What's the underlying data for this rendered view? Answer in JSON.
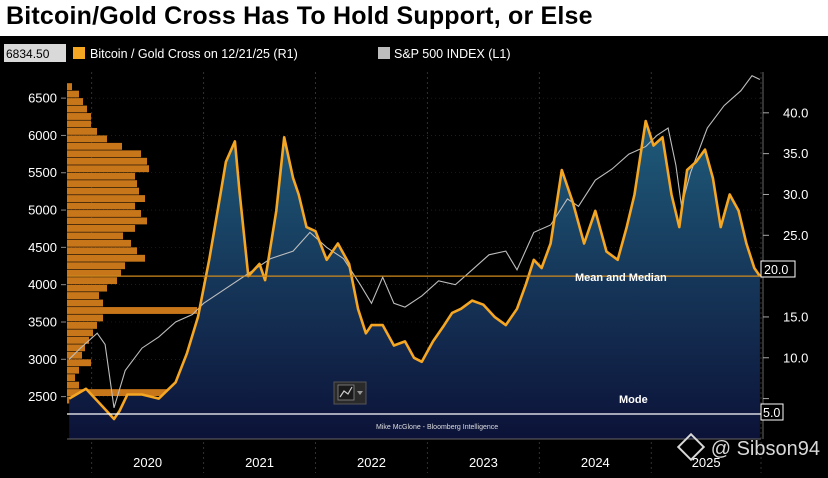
{
  "title": "Bitcoin/Gold Cross Has To Hold Support, or Else",
  "colors": {
    "bitcoin_gold": "#f5a623",
    "sp500": "#bdbdbd",
    "histogram": "#c8761a",
    "area_top": "#1f5b7a",
    "area_bottom": "#0c1238",
    "mean_line": "#d08a1c",
    "mode_line": "#ffffff",
    "grid": "#303030"
  },
  "chart_data": {
    "type": "line",
    "x_tick_labels": [
      "2020",
      "2021",
      "2022",
      "2023",
      "2024",
      "2025"
    ],
    "left_axis": {
      "ylim": [
        2200,
        6850
      ],
      "ticks": [
        2500,
        3000,
        3500,
        4000,
        4500,
        5000,
        5500,
        6000,
        6500
      ],
      "last_value_label": "6834.50"
    },
    "right_axis": {
      "ylim": [
        2.5,
        45
      ],
      "ticks": [
        5.0,
        10.0,
        15.0,
        20.0,
        25.0,
        30.0,
        35.0,
        40.0
      ]
    },
    "legend": [
      {
        "name": "Bitcoin / Gold Cross on 12/21/25 (R1)",
        "icon": "square-orange"
      },
      {
        "name": "S&P 500 INDEX (L1)",
        "icon": "square-gray"
      }
    ],
    "annotations": {
      "mean_median": {
        "label": "Mean and Median",
        "value": 20.0,
        "value_label": "20.0"
      },
      "mode": {
        "label": "Mode",
        "value": 5.0,
        "value_label": "5.0"
      },
      "source": "Mike McGlone - Bloomberg Intelligence"
    },
    "series": [
      {
        "name": "Bitcoin / Gold Cross on 12/21/25 (R1)",
        "axis": "right",
        "x": [
          2019.8,
          2019.95,
          2020.1,
          2020.2,
          2020.25,
          2020.32,
          2020.45,
          2020.6,
          2020.75,
          2020.85,
          2020.95,
          2021.05,
          2021.15,
          2021.2,
          2021.28,
          2021.32,
          2021.4,
          2021.5,
          2021.55,
          2021.65,
          2021.72,
          2021.8,
          2021.85,
          2021.92,
          2022.0,
          2022.1,
          2022.2,
          2022.3,
          2022.38,
          2022.45,
          2022.5,
          2022.6,
          2022.7,
          2022.8,
          2022.88,
          2022.95,
          2023.05,
          2023.15,
          2023.22,
          2023.3,
          2023.4,
          2023.5,
          2023.6,
          2023.7,
          2023.8,
          2023.88,
          2023.95,
          2024.02,
          2024.1,
          2024.2,
          2024.3,
          2024.4,
          2024.5,
          2024.6,
          2024.7,
          2024.78,
          2024.85,
          2024.9,
          2024.95,
          2025.02,
          2025.1,
          2025.18,
          2025.25,
          2025.32,
          2025.4,
          2025.48,
          2025.55,
          2025.62,
          2025.7,
          2025.78,
          2025.85,
          2025.92,
          2025.97
        ],
        "values": [
          5.0,
          6.2,
          4.0,
          2.5,
          3.5,
          5.5,
          5.5,
          5.0,
          7.0,
          10.5,
          15.0,
          22.0,
          30.0,
          34.0,
          36.5,
          30.5,
          20.0,
          21.5,
          19.5,
          28.0,
          37.0,
          32.0,
          30.0,
          26.0,
          25.5,
          22.0,
          24.0,
          21.5,
          16.0,
          13.0,
          14.0,
          14.0,
          11.5,
          12.0,
          10.0,
          9.5,
          12.0,
          14.0,
          15.5,
          16.0,
          17.0,
          16.5,
          15.0,
          14.0,
          16.0,
          19.0,
          22.0,
          21.0,
          24.0,
          33.0,
          29.0,
          24.0,
          28.0,
          23.0,
          22.0,
          26.0,
          30.0,
          34.5,
          39.0,
          36.0,
          37.0,
          30.0,
          26.0,
          33.0,
          34.0,
          35.5,
          32.0,
          26.0,
          30.0,
          28.0,
          24.0,
          21.0,
          20.0
        ]
      },
      {
        "name": "S&P 500 INDEX (L1)",
        "axis": "left",
        "x": [
          2019.8,
          2019.9,
          2020.05,
          2020.12,
          2020.2,
          2020.3,
          2020.45,
          2020.6,
          2020.75,
          2020.9,
          2021.0,
          2021.2,
          2021.4,
          2021.6,
          2021.8,
          2021.95,
          2022.1,
          2022.25,
          2022.4,
          2022.5,
          2022.6,
          2022.7,
          2022.8,
          2022.95,
          2023.1,
          2023.25,
          2023.4,
          2023.55,
          2023.7,
          2023.8,
          2023.95,
          2024.1,
          2024.25,
          2024.35,
          2024.5,
          2024.65,
          2024.8,
          2024.95,
          2025.05,
          2025.15,
          2025.22,
          2025.27,
          2025.35,
          2025.5,
          2025.65,
          2025.8,
          2025.9,
          2025.97
        ],
        "values": [
          3000,
          3150,
          3350,
          3200,
          2350,
          2850,
          3150,
          3300,
          3500,
          3600,
          3750,
          3950,
          4150,
          4350,
          4450,
          4700,
          4500,
          4350,
          4000,
          3750,
          4100,
          3750,
          3700,
          3850,
          4050,
          4000,
          4200,
          4400,
          4450,
          4200,
          4700,
          4800,
          5150,
          5050,
          5400,
          5550,
          5750,
          5850,
          6000,
          6100,
          5600,
          5050,
          5500,
          6100,
          6400,
          6600,
          6800,
          6750
        ]
      }
    ],
    "volume_profile": {
      "axis": "left",
      "bins": [
        6650,
        6550,
        6450,
        6350,
        6250,
        6150,
        6050,
        5950,
        5850,
        5750,
        5650,
        5550,
        5450,
        5350,
        5250,
        5150,
        5050,
        4950,
        4850,
        4750,
        4650,
        4550,
        4450,
        4350,
        4250,
        4150,
        4050,
        3950,
        3850,
        3750,
        3650,
        3550,
        3450,
        3350,
        3250,
        3150,
        3050,
        2950,
        2850,
        2750,
        2650,
        2550,
        2450
      ],
      "counts": [
        5,
        12,
        16,
        20,
        24,
        24,
        30,
        40,
        55,
        74,
        80,
        82,
        68,
        70,
        72,
        78,
        68,
        74,
        80,
        68,
        56,
        64,
        70,
        78,
        58,
        54,
        50,
        40,
        32,
        36,
        130,
        36,
        30,
        26,
        22,
        18,
        15,
        24,
        12,
        8,
        12,
        205,
        8
      ]
    }
  }
}
